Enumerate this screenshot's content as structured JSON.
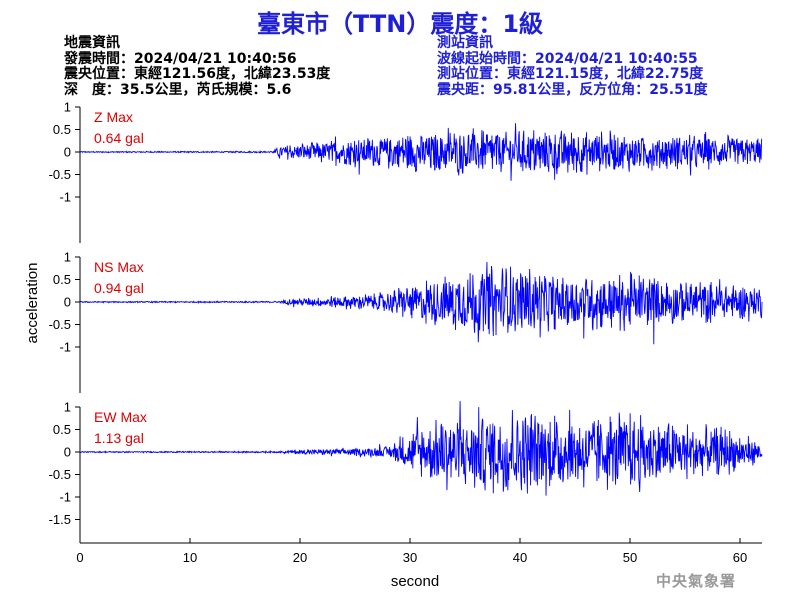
{
  "title": "臺東市（TTN）震度：1級",
  "earthquake_info": {
    "heading": "地震資訊",
    "origin_time": "發震時間：2024/04/21 10:40:56",
    "epicenter": "震央位置：東經121.56度，北緯23.53度",
    "depth_magnitude": "深　度：35.5公里，芮氏規模：5.6"
  },
  "station_info": {
    "heading": "測站資訊",
    "wave_start": "波線起始時間：2024/04/21 10:40:55",
    "station_location": "測站位置：東經121.15度，北緯22.75度",
    "distance_azimuth": "震央距：95.81公里，反方位角：25.51度"
  },
  "agency": "中央氣象署",
  "colors": {
    "title": "#1f1fd6",
    "trace": "#0000ff",
    "max_label": "#e00000",
    "agency": "#9a9a9a"
  },
  "chart_data": {
    "type": "line",
    "xlabel": "second",
    "ylabel": "acceleration",
    "xlim": [
      0,
      62
    ],
    "x_ticks": [
      0,
      10,
      20,
      30,
      40,
      50,
      60
    ],
    "panels": [
      {
        "component": "Z",
        "max_label": "Z Max",
        "max_value": "0.64 gal",
        "ylim": [
          -1,
          1
        ],
        "y_ticks": [
          1,
          0.5,
          0,
          -0.5,
          -1
        ],
        "peak": 0.64,
        "noise": 0.015,
        "onset": 17.6,
        "envelope": [
          [
            0,
            0.015
          ],
          [
            17.5,
            0.02
          ],
          [
            18,
            0.12
          ],
          [
            22,
            0.22
          ],
          [
            26,
            0.3
          ],
          [
            30,
            0.4
          ],
          [
            35,
            0.45
          ],
          [
            40,
            0.45
          ],
          [
            43,
            0.5
          ],
          [
            47,
            0.4
          ],
          [
            52,
            0.35
          ],
          [
            56,
            0.35
          ],
          [
            60,
            0.3
          ],
          [
            62,
            0.3
          ]
        ]
      },
      {
        "component": "NS",
        "max_label": "NS Max",
        "max_value": "0.94 gal",
        "ylim": [
          -1,
          1
        ],
        "y_ticks": [
          1,
          0.5,
          0,
          -0.5,
          -1
        ],
        "peak": 0.94,
        "noise": 0.015,
        "onset": 18.5,
        "envelope": [
          [
            0,
            0.015
          ],
          [
            18,
            0.02
          ],
          [
            19,
            0.06
          ],
          [
            23,
            0.12
          ],
          [
            27,
            0.18
          ],
          [
            30,
            0.35
          ],
          [
            33,
            0.55
          ],
          [
            37,
            0.75
          ],
          [
            40,
            0.72
          ],
          [
            44,
            0.55
          ],
          [
            48,
            0.6
          ],
          [
            51,
            0.55
          ],
          [
            55,
            0.45
          ],
          [
            59,
            0.4
          ],
          [
            62,
            0.35
          ]
        ]
      },
      {
        "component": "EW",
        "max_label": "EW Max",
        "max_value": "1.13 gal",
        "ylim": [
          -1.5,
          1
        ],
        "y_ticks": [
          1,
          0.5,
          0,
          -0.5,
          -1,
          -1.5
        ],
        "peak": 1.13,
        "noise": 0.015,
        "onset": 18.5,
        "envelope": [
          [
            0,
            0.015
          ],
          [
            18,
            0.02
          ],
          [
            20,
            0.05
          ],
          [
            25,
            0.08
          ],
          [
            28,
            0.12
          ],
          [
            30,
            0.4
          ],
          [
            33,
            0.75
          ],
          [
            37,
            0.85
          ],
          [
            40,
            0.9
          ],
          [
            45,
            0.7
          ],
          [
            50,
            0.75
          ],
          [
            55,
            0.55
          ],
          [
            59,
            0.45
          ],
          [
            62,
            0.2
          ]
        ]
      }
    ]
  }
}
